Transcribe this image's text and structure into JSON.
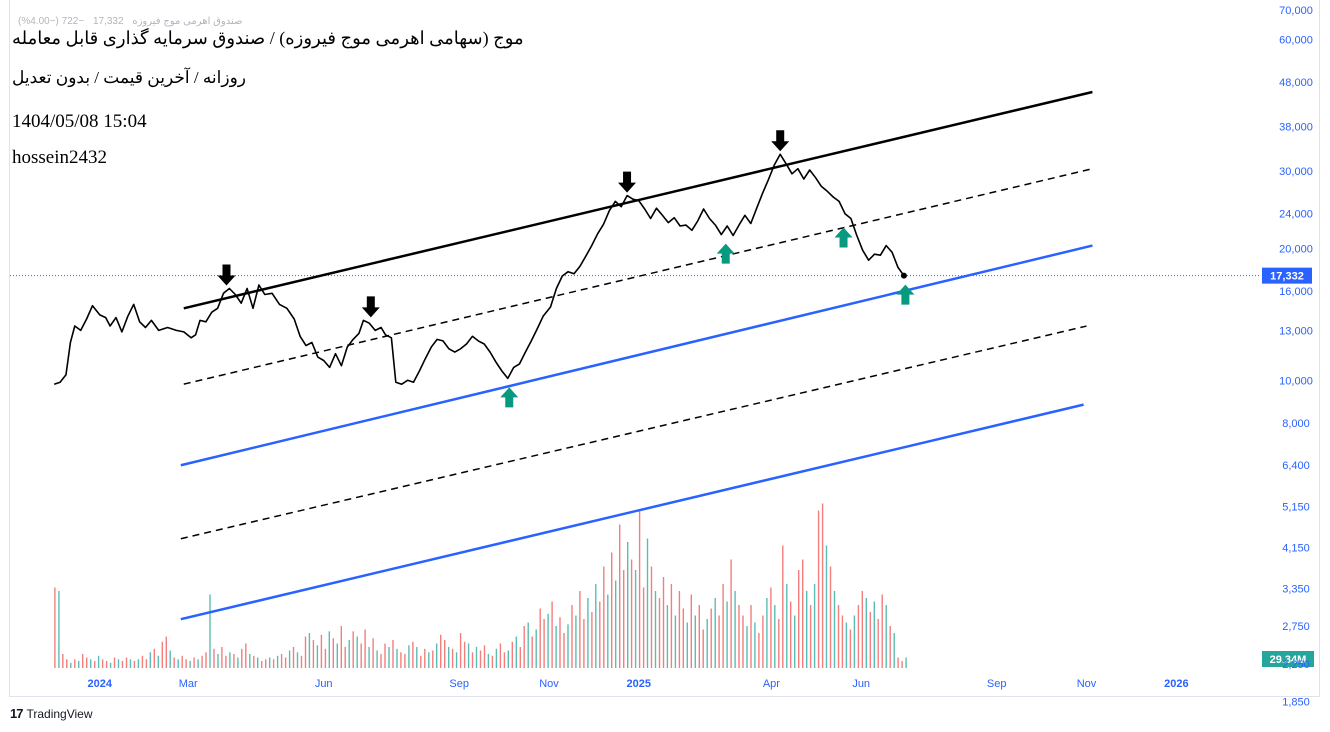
{
  "header": {
    "legend_name": "صندوق اهرمی موج فیروزه",
    "legend_value": "17,332",
    "legend_change": "−722 (−4.00%)",
    "title": "موج (سهامی اهرمی موج فیروزه) / صندوق سرمایه گذاری قابل معامله",
    "subtitle": "روزانه / آخرین قیمت / بدون تعدیل",
    "datetime": "1404/05/08 15:04",
    "author": "hossein2432"
  },
  "footer": {
    "brand": "TradingView",
    "logo": "17"
  },
  "chart_data": {
    "type": "line",
    "yscale": "log",
    "ylim": [
      2300,
      70000
    ],
    "y_ticks": [
      1850,
      2250,
      2750,
      3350,
      4150,
      5150,
      6400,
      8000,
      10000,
      13000,
      16000,
      20000,
      24000,
      30000,
      38000,
      48000,
      60000,
      70000
    ],
    "y_tick_labels": [
      "1,850",
      "2,250",
      "2,750",
      "3,350",
      "4,150",
      "5,150",
      "6,400",
      "8,000",
      "10,000",
      "13,000",
      "16,000",
      "20,000",
      "24,000",
      "30,000",
      "38,000",
      "48,000",
      "60,000",
      "70,000"
    ],
    "x_ticks": [
      {
        "label": "2024",
        "date": "2024-01-01",
        "bold": true
      },
      {
        "label": "Mar",
        "date": "2024-03-01",
        "bold": false
      },
      {
        "label": "Jun",
        "date": "2024-06-01",
        "bold": false
      },
      {
        "label": "Sep",
        "date": "2024-09-01",
        "bold": false
      },
      {
        "label": "Nov",
        "date": "2024-11-01",
        "bold": false
      },
      {
        "label": "2025",
        "date": "2025-01-01",
        "bold": true
      },
      {
        "label": "Apr",
        "date": "2025-04-01",
        "bold": false
      },
      {
        "label": "Jun",
        "date": "2025-06-01",
        "bold": false
      },
      {
        "label": "Sep",
        "date": "2025-09-01",
        "bold": false
      },
      {
        "label": "Nov",
        "date": "2025-11-01",
        "bold": false
      },
      {
        "label": "2026",
        "date": "2026-01-01",
        "bold": true
      }
    ],
    "xlim": [
      "2023-11-01",
      "2026-02-20"
    ],
    "price_series": {
      "color": "#000000",
      "points": [
        [
          "2023-12-01",
          9800
        ],
        [
          "2023-12-05",
          9900
        ],
        [
          "2023-12-09",
          10300
        ],
        [
          "2023-12-12",
          12200
        ],
        [
          "2023-12-15",
          13300
        ],
        [
          "2023-12-19",
          13000
        ],
        [
          "2023-12-23",
          13800
        ],
        [
          "2023-12-27",
          14800
        ],
        [
          "2024-01-01",
          14100
        ],
        [
          "2024-01-05",
          13900
        ],
        [
          "2024-01-08",
          13300
        ],
        [
          "2024-01-12",
          13900
        ],
        [
          "2024-01-16",
          12900
        ],
        [
          "2024-01-20",
          14000
        ],
        [
          "2024-01-24",
          14900
        ],
        [
          "2024-01-28",
          13600
        ],
        [
          "2024-02-01",
          13200
        ],
        [
          "2024-02-05",
          13700
        ],
        [
          "2024-02-10",
          13000
        ],
        [
          "2024-02-16",
          13200
        ],
        [
          "2024-02-22",
          13000
        ],
        [
          "2024-02-27",
          12900
        ],
        [
          "2024-03-03",
          12500
        ],
        [
          "2024-03-06",
          12700
        ],
        [
          "2024-03-09",
          13700
        ],
        [
          "2024-03-13",
          13600
        ],
        [
          "2024-03-17",
          14300
        ],
        [
          "2024-03-21",
          14600
        ],
        [
          "2024-03-25",
          15800
        ],
        [
          "2024-03-29",
          16200
        ],
        [
          "2024-04-02",
          15700
        ],
        [
          "2024-04-06",
          15000
        ],
        [
          "2024-04-10",
          16200
        ],
        [
          "2024-04-14",
          14600
        ],
        [
          "2024-04-18",
          16500
        ],
        [
          "2024-04-22",
          15700
        ],
        [
          "2024-04-27",
          15800
        ],
        [
          "2024-05-02",
          14900
        ],
        [
          "2024-05-07",
          14600
        ],
        [
          "2024-05-12",
          13800
        ],
        [
          "2024-05-16",
          12600
        ],
        [
          "2024-05-20",
          12000
        ],
        [
          "2024-05-24",
          12200
        ],
        [
          "2024-05-28",
          11300
        ],
        [
          "2024-06-01",
          11100
        ],
        [
          "2024-06-05",
          10700
        ],
        [
          "2024-06-09",
          11500
        ],
        [
          "2024-06-13",
          10800
        ],
        [
          "2024-06-17",
          11900
        ],
        [
          "2024-06-21",
          12400
        ],
        [
          "2024-06-25",
          12800
        ],
        [
          "2024-06-28",
          13700
        ],
        [
          "2024-07-02",
          13500
        ],
        [
          "2024-07-06",
          13000
        ],
        [
          "2024-07-10",
          13200
        ],
        [
          "2024-07-13",
          12700
        ],
        [
          "2024-07-17",
          12500
        ],
        [
          "2024-07-20",
          9900
        ],
        [
          "2024-07-24",
          9800
        ],
        [
          "2024-07-28",
          10000
        ],
        [
          "2024-08-01",
          9900
        ],
        [
          "2024-08-05",
          10500
        ],
        [
          "2024-08-09",
          11200
        ],
        [
          "2024-08-13",
          11900
        ],
        [
          "2024-08-17",
          12400
        ],
        [
          "2024-08-21",
          12300
        ],
        [
          "2024-08-25",
          11800
        ],
        [
          "2024-08-29",
          11600
        ],
        [
          "2024-09-02",
          11800
        ],
        [
          "2024-09-06",
          12100
        ],
        [
          "2024-09-10",
          12600
        ],
        [
          "2024-09-14",
          12300
        ],
        [
          "2024-09-18",
          12100
        ],
        [
          "2024-09-22",
          11600
        ],
        [
          "2024-09-26",
          11000
        ],
        [
          "2024-09-30",
          10500
        ],
        [
          "2024-10-04",
          10100
        ],
        [
          "2024-10-08",
          10700
        ],
        [
          "2024-10-12",
          10900
        ],
        [
          "2024-10-16",
          11600
        ],
        [
          "2024-10-20",
          12300
        ],
        [
          "2024-10-24",
          13100
        ],
        [
          "2024-10-28",
          14000
        ],
        [
          "2024-11-02",
          14700
        ],
        [
          "2024-11-06",
          16200
        ],
        [
          "2024-11-10",
          17300
        ],
        [
          "2024-11-14",
          17700
        ],
        [
          "2024-11-18",
          17500
        ],
        [
          "2024-11-22",
          18200
        ],
        [
          "2024-11-26",
          19200
        ],
        [
          "2024-11-30",
          20300
        ],
        [
          "2024-12-04",
          21600
        ],
        [
          "2024-12-08",
          22700
        ],
        [
          "2024-12-12",
          24400
        ],
        [
          "2024-12-16",
          25600
        ],
        [
          "2024-12-20",
          24900
        ],
        [
          "2024-12-24",
          26400
        ],
        [
          "2024-12-28",
          25900
        ],
        [
          "2025-01-01",
          25700
        ],
        [
          "2025-01-05",
          24600
        ],
        [
          "2025-01-09",
          23400
        ],
        [
          "2025-01-13",
          24700
        ],
        [
          "2025-01-17",
          23800
        ],
        [
          "2025-01-21",
          22900
        ],
        [
          "2025-01-25",
          23500
        ],
        [
          "2025-01-29",
          22500
        ],
        [
          "2025-02-02",
          22600
        ],
        [
          "2025-02-06",
          22000
        ],
        [
          "2025-02-10",
          23100
        ],
        [
          "2025-02-14",
          24600
        ],
        [
          "2025-02-18",
          23400
        ],
        [
          "2025-02-22",
          22600
        ],
        [
          "2025-02-26",
          21500
        ],
        [
          "2025-03-02",
          22500
        ],
        [
          "2025-03-06",
          21400
        ],
        [
          "2025-03-10",
          22600
        ],
        [
          "2025-03-14",
          23800
        ],
        [
          "2025-03-18",
          22800
        ],
        [
          "2025-03-22",
          24700
        ],
        [
          "2025-03-26",
          26700
        ],
        [
          "2025-03-30",
          28700
        ],
        [
          "2025-04-03",
          31000
        ],
        [
          "2025-04-07",
          32800
        ],
        [
          "2025-04-11",
          31200
        ],
        [
          "2025-04-15",
          29600
        ],
        [
          "2025-04-19",
          30400
        ],
        [
          "2025-04-23",
          28800
        ],
        [
          "2025-04-27",
          30200
        ],
        [
          "2025-05-01",
          29000
        ],
        [
          "2025-05-05",
          27700
        ],
        [
          "2025-05-09",
          27000
        ],
        [
          "2025-05-13",
          26200
        ],
        [
          "2025-05-17",
          25600
        ],
        [
          "2025-05-21",
          24000
        ],
        [
          "2025-05-25",
          23400
        ],
        [
          "2025-05-29",
          21400
        ],
        [
          "2025-06-02",
          19800
        ],
        [
          "2025-06-06",
          18800
        ],
        [
          "2025-06-10",
          19400
        ],
        [
          "2025-06-14",
          19300
        ],
        [
          "2025-06-18",
          20300
        ],
        [
          "2025-06-22",
          19600
        ],
        [
          "2025-06-26",
          18100
        ],
        [
          "2025-06-30",
          17332
        ]
      ]
    },
    "last_price": {
      "value": 17332,
      "label": "17,332",
      "color": "#2962ff"
    },
    "channel_lines": [
      {
        "style": "solid",
        "color": "#000000",
        "start": [
          "2024-02-27",
          14600
        ],
        "end": [
          "2025-11-05",
          45500
        ]
      },
      {
        "style": "dashed",
        "color": "#000000",
        "start": [
          "2024-02-27",
          9800
        ],
        "end": [
          "2025-11-05",
          30400
        ]
      },
      {
        "style": "solid",
        "color": "#2962ff",
        "start": [
          "2024-02-25",
          6400
        ],
        "end": [
          "2025-11-05",
          20300
        ]
      },
      {
        "style": "dashed",
        "color": "#000000",
        "start": [
          "2024-02-25",
          4350
        ],
        "end": [
          "2025-11-01",
          13300
        ]
      },
      {
        "style": "solid",
        "color": "#2962ff",
        "start": [
          "2024-02-25",
          2850
        ],
        "end": [
          "2025-10-30",
          8800
        ]
      }
    ],
    "arrows_down": [
      {
        "date": "2024-03-27",
        "value": 16200
      },
      {
        "date": "2024-07-03",
        "value": 13700
      },
      {
        "date": "2024-12-24",
        "value": 26400
      },
      {
        "date": "2025-04-07",
        "value": 32800
      }
    ],
    "arrows_up": [
      {
        "date": "2024-10-05",
        "value": 10100
      },
      {
        "date": "2025-03-01",
        "value": 21500
      },
      {
        "date": "2025-05-20",
        "value": 23400
      },
      {
        "date": "2025-07-01",
        "value": 17332
      }
    ],
    "volume": {
      "label": "29.34M",
      "up_color": "#26a69a",
      "down_color": "#ef5350",
      "bars": [
        0.46,
        0.44,
        0.08,
        0.05,
        0.03,
        0.05,
        0.04,
        0.08,
        0.06,
        0.05,
        0.04,
        0.07,
        0.05,
        0.04,
        0.03,
        0.06,
        0.05,
        0.04,
        0.06,
        0.05,
        0.04,
        0.05,
        0.07,
        0.05,
        0.09,
        0.11,
        0.07,
        0.15,
        0.18,
        0.1,
        0.06,
        0.05,
        0.07,
        0.05,
        0.04,
        0.06,
        0.05,
        0.07,
        0.09,
        0.42,
        0.11,
        0.08,
        0.12,
        0.07,
        0.09,
        0.08,
        0.06,
        0.11,
        0.14,
        0.08,
        0.07,
        0.06,
        0.04,
        0.05,
        0.06,
        0.05,
        0.07,
        0.08,
        0.06,
        0.1,
        0.12,
        0.09,
        0.07,
        0.18,
        0.2,
        0.16,
        0.13,
        0.19,
        0.11,
        0.21,
        0.17,
        0.14,
        0.24,
        0.12,
        0.16,
        0.21,
        0.18,
        0.14,
        0.22,
        0.12,
        0.17,
        0.1,
        0.08,
        0.14,
        0.12,
        0.16,
        0.11,
        0.09,
        0.08,
        0.13,
        0.15,
        0.12,
        0.07,
        0.11,
        0.09,
        0.1,
        0.14,
        0.19,
        0.16,
        0.12,
        0.11,
        0.09,
        0.2,
        0.15,
        0.14,
        0.09,
        0.12,
        0.1,
        0.13,
        0.08,
        0.07,
        0.11,
        0.14,
        0.09,
        0.1,
        0.15,
        0.18,
        0.12,
        0.24,
        0.26,
        0.18,
        0.22,
        0.34,
        0.28,
        0.31,
        0.38,
        0.24,
        0.29,
        0.2,
        0.25,
        0.36,
        0.3,
        0.44,
        0.28,
        0.4,
        0.32,
        0.48,
        0.38,
        0.58,
        0.42,
        0.66,
        0.5,
        0.82,
        0.56,
        0.72,
        0.62,
        0.56,
        0.9,
        0.46,
        0.74,
        0.58,
        0.44,
        0.4,
        0.52,
        0.36,
        0.48,
        0.3,
        0.44,
        0.34,
        0.26,
        0.42,
        0.3,
        0.36,
        0.22,
        0.28,
        0.34,
        0.4,
        0.3,
        0.48,
        0.38,
        0.62,
        0.44,
        0.36,
        0.3,
        0.24,
        0.36,
        0.26,
        0.2,
        0.3,
        0.4,
        0.46,
        0.36,
        0.28,
        0.7,
        0.48,
        0.38,
        0.3,
        0.56,
        0.62,
        0.44,
        0.36,
        0.48,
        0.9,
        0.94,
        0.7,
        0.58,
        0.44,
        0.36,
        0.3,
        0.26,
        0.22,
        0.3,
        0.36,
        0.44,
        0.4,
        0.32,
        0.38,
        0.28,
        0.42,
        0.36,
        0.24,
        0.2,
        0.06,
        0.04,
        0.06
      ]
    }
  }
}
